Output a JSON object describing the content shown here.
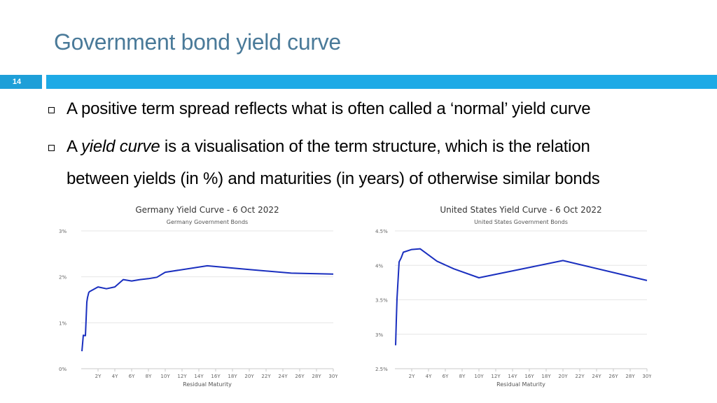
{
  "slide": {
    "title": "Government bond yield curve",
    "number": "14"
  },
  "bullets": [
    {
      "text": "A positive term spread reflects what is often called a ‘normal’ yield curve"
    },
    {
      "prefix": "A ",
      "italic": "yield curve",
      "rest": " is a visualisation of the term structure, which is the relation",
      "line2": "between yields (in %) and maturities (in years) of otherwise similar bonds"
    }
  ],
  "colors": {
    "accent": "#1eaae6",
    "title": "#4a7a99",
    "line": "#1a2fbf"
  },
  "chart_data": [
    {
      "type": "line",
      "title": "Germany Yield Curve - 6 Oct 2022",
      "subtitle": "Germany Government Bonds",
      "xlabel": "Residual Maturity",
      "ylabel": "",
      "xlim": [
        0,
        30
      ],
      "ylim": [
        0,
        3
      ],
      "yticks": [
        0,
        1,
        2,
        3
      ],
      "ytick_labels": [
        "0%",
        "1%",
        "2%",
        "3%"
      ],
      "xticks": [
        2,
        4,
        6,
        8,
        10,
        12,
        14,
        16,
        18,
        20,
        22,
        24,
        26,
        28,
        30
      ],
      "xtick_labels": [
        "2Y",
        "4Y",
        "6Y",
        "8Y",
        "10Y",
        "12Y",
        "14Y",
        "16Y",
        "18Y",
        "20Y",
        "22Y",
        "24Y",
        "26Y",
        "28Y",
        "30Y"
      ],
      "grid": true,
      "series": [
        {
          "x": [
            0.08,
            0.25,
            0.42,
            0.5,
            0.67,
            0.75,
            0.9,
            1,
            2,
            3,
            4,
            5,
            6,
            7,
            8,
            9,
            10,
            15,
            20,
            25,
            30
          ],
          "values": [
            0.38,
            0.73,
            0.72,
            0.72,
            1.45,
            1.55,
            1.66,
            1.68,
            1.78,
            1.74,
            1.78,
            1.94,
            1.91,
            1.94,
            1.96,
            1.99,
            2.1,
            2.24,
            2.16,
            2.08,
            2.06
          ]
        }
      ]
    },
    {
      "type": "line",
      "title": "United States Yield Curve - 6 Oct 2022",
      "subtitle": "United States Government Bonds",
      "xlabel": "Residual Maturity",
      "ylabel": "",
      "xlim": [
        0,
        30
      ],
      "ylim": [
        2.5,
        4.5
      ],
      "yticks": [
        2.5,
        3,
        3.5,
        4,
        4.5
      ],
      "ytick_labels": [
        "2.5%",
        "3%",
        "3.5%",
        "4%",
        "4.5%"
      ],
      "xticks": [
        2,
        4,
        6,
        8,
        10,
        12,
        14,
        16,
        18,
        20,
        22,
        24,
        26,
        28,
        30
      ],
      "xtick_labels": [
        "2Y",
        "4Y",
        "6Y",
        "8Y",
        "10Y",
        "12Y",
        "14Y",
        "16Y",
        "18Y",
        "20Y",
        "22Y",
        "24Y",
        "26Y",
        "28Y",
        "30Y"
      ],
      "grid": true,
      "series": [
        {
          "x": [
            0.08,
            0.17,
            0.25,
            0.5,
            0.75,
            1,
            2,
            3,
            5,
            7,
            10,
            20,
            30
          ],
          "values": [
            2.84,
            3.2,
            3.52,
            4.05,
            4.11,
            4.19,
            4.23,
            4.24,
            4.06,
            3.95,
            3.82,
            4.07,
            3.78
          ]
        }
      ]
    }
  ]
}
